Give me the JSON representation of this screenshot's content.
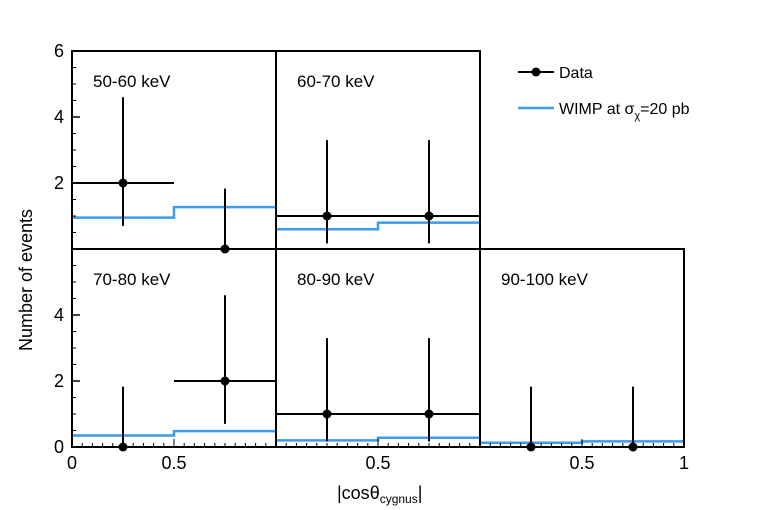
{
  "chart_data": {
    "type": "histogram-grid",
    "xlabel_main": "|cos",
    "xlabel_theta": "θ",
    "xlabel_sub": "cygnus",
    "xlabel_end": "|",
    "ylabel": "Number of events",
    "xlim": [
      0,
      1
    ],
    "ylim": [
      0,
      6
    ],
    "y_ticks": [
      0,
      2,
      4,
      6
    ],
    "y_tick_labels_top": [
      "2",
      "4",
      "6"
    ],
    "y_tick_labels_bottom": [
      "0",
      "2",
      "4"
    ],
    "x_tick_labels_first": [
      "0",
      "0.5"
    ],
    "x_tick_labels_middle": [
      "0.5"
    ],
    "x_tick_labels_last": [
      "0.5",
      "1"
    ],
    "x_tick_values_first": [
      0,
      0.5
    ],
    "x_tick_values_middle": [
      0.5
    ],
    "x_tick_values_last": [
      0.5,
      1
    ],
    "legend": {
      "data_label": "Data",
      "wimp_prefix": "WIMP at ",
      "wimp_sigma": "σ",
      "wimp_chi": "χ",
      "wimp_suffix": "=20 pb"
    },
    "colors": {
      "data": "#000000",
      "wimp": "#3d9be9"
    },
    "panels": [
      {
        "label": "50-60 keV",
        "row": 0,
        "col": 0,
        "wimp": [
          {
            "x0": 0,
            "x1": 0.5,
            "y": 0.95
          },
          {
            "x0": 0.5,
            "x1": 1,
            "y": 1.27
          }
        ],
        "data": [
          {
            "x": 0.25,
            "xerr0": 0,
            "xerr1": 0.5,
            "y": 2,
            "ylo": 0.7,
            "yhi": 4.6
          },
          {
            "x": 0.75,
            "xerr0": 0.75,
            "xerr1": 0.75,
            "y": 0,
            "ylo": 0,
            "yhi": 1.83
          }
        ]
      },
      {
        "label": "60-70 keV",
        "row": 0,
        "col": 1,
        "wimp": [
          {
            "x0": 0,
            "x1": 0.5,
            "y": 0.6
          },
          {
            "x0": 0.5,
            "x1": 1,
            "y": 0.8
          }
        ],
        "data": [
          {
            "x": 0.25,
            "xerr0": 0,
            "xerr1": 1,
            "y": 1,
            "ylo": 0.17,
            "yhi": 3.3
          },
          {
            "x": 0.75,
            "xerr0": 0,
            "xerr1": 1,
            "y": 1,
            "ylo": 0.17,
            "yhi": 3.3
          }
        ]
      },
      {
        "label": "70-80 keV",
        "row": 1,
        "col": 0,
        "wimp": [
          {
            "x0": 0,
            "x1": 0.5,
            "y": 0.35
          },
          {
            "x0": 0.5,
            "x1": 1,
            "y": 0.48
          }
        ],
        "data": [
          {
            "x": 0.25,
            "xerr0": 0.25,
            "xerr1": 0.25,
            "y": 0,
            "ylo": 0,
            "yhi": 1.83
          },
          {
            "x": 0.75,
            "xerr0": 0.5,
            "xerr1": 1,
            "y": 2,
            "ylo": 0.7,
            "yhi": 4.6
          }
        ]
      },
      {
        "label": "80-90 keV",
        "row": 1,
        "col": 1,
        "wimp": [
          {
            "x0": 0,
            "x1": 0.5,
            "y": 0.2
          },
          {
            "x0": 0.5,
            "x1": 1,
            "y": 0.28
          }
        ],
        "data": [
          {
            "x": 0.25,
            "xerr0": 0,
            "xerr1": 1,
            "y": 1,
            "ylo": 0.17,
            "yhi": 3.3
          },
          {
            "x": 0.75,
            "xerr0": 0,
            "xerr1": 1,
            "y": 1,
            "ylo": 0.17,
            "yhi": 3.3
          }
        ]
      },
      {
        "label": "90-100 keV",
        "row": 1,
        "col": 2,
        "wimp": [
          {
            "x0": 0,
            "x1": 0.5,
            "y": 0.13
          },
          {
            "x0": 0.5,
            "x1": 1,
            "y": 0.17
          }
        ],
        "data": [
          {
            "x": 0.25,
            "xerr0": 0.25,
            "xerr1": 0.25,
            "y": 0,
            "ylo": 0,
            "yhi": 1.83
          },
          {
            "x": 0.75,
            "xerr0": 0.75,
            "xerr1": 0.75,
            "y": 0,
            "ylo": 0,
            "yhi": 1.83
          }
        ]
      }
    ]
  }
}
